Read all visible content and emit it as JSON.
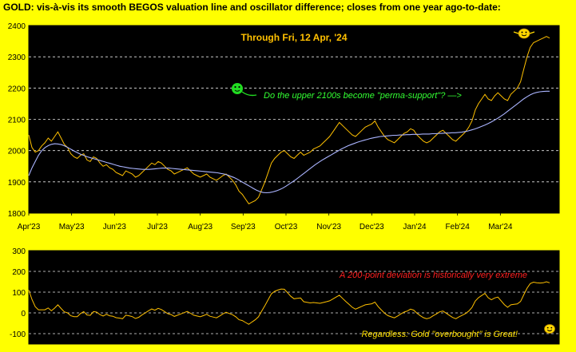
{
  "chart_data": [
    {
      "type": "line",
      "title": "GOLD:  vis-à-vis its smooth BEGOS valuation line and oscillator difference; closes from one year ago-to-date:",
      "subtitle": "Through Fri, 12 Apr, '24",
      "x_labels": [
        "Apr'23",
        "May'23",
        "Jun'23",
        "Jul'23",
        "Aug'23",
        "Sep'23",
        "Oct'23",
        "Nov'23",
        "Dec'23",
        "Jan'24",
        "Feb'24",
        "Mar'24"
      ],
      "ylim": [
        1800,
        2400
      ],
      "yticks": [
        1800,
        1900,
        2000,
        2100,
        2200,
        2300,
        2400
      ],
      "grid": true,
      "annotation": "Do the upper 2100s become \"perma-support\"?  —>",
      "series": [
        {
          "role": "price",
          "color": "#ffc000",
          "values": [
            2050,
            2010,
            1995,
            2000,
            2015,
            2025,
            2040,
            2030,
            2045,
            2060,
            2040,
            2020,
            2010,
            1990,
            1980,
            1975,
            1985,
            1990,
            1970,
            1965,
            1980,
            1975,
            1960,
            1950,
            1955,
            1945,
            1940,
            1930,
            1925,
            1920,
            1935,
            1930,
            1925,
            1915,
            1920,
            1930,
            1940,
            1950,
            1960,
            1955,
            1965,
            1960,
            1950,
            1940,
            1935,
            1925,
            1930,
            1935,
            1940,
            1945,
            1935,
            1925,
            1920,
            1915,
            1920,
            1925,
            1915,
            1910,
            1905,
            1912,
            1920,
            1925,
            1915,
            1905,
            1890,
            1870,
            1860,
            1845,
            1830,
            1835,
            1840,
            1850,
            1875,
            1900,
            1930,
            1960,
            1975,
            1985,
            1995,
            2000,
            1990,
            1980,
            1975,
            1985,
            1995,
            1985,
            1990,
            1995,
            2005,
            2010,
            2015,
            2025,
            2035,
            2045,
            2060,
            2075,
            2090,
            2080,
            2070,
            2060,
            2050,
            2045,
            2055,
            2065,
            2075,
            2080,
            2085,
            2095,
            2075,
            2060,
            2045,
            2035,
            2030,
            2025,
            2035,
            2045,
            2055,
            2060,
            2070,
            2065,
            2050,
            2040,
            2030,
            2025,
            2030,
            2040,
            2050,
            2060,
            2065,
            2055,
            2045,
            2035,
            2030,
            2040,
            2050,
            2060,
            2075,
            2095,
            2130,
            2150,
            2165,
            2180,
            2165,
            2160,
            2175,
            2185,
            2175,
            2165,
            2160,
            2180,
            2190,
            2200,
            2220,
            2260,
            2300,
            2330,
            2345,
            2350,
            2355,
            2360,
            2365,
            2360
          ],
          "x_start_label_index": 0
        },
        {
          "role": "valuation",
          "color": "#aab4ff",
          "values": [
            1920,
            1945,
            1965,
            1985,
            2000,
            2010,
            2016,
            2020,
            2022,
            2021,
            2019,
            2015,
            2010,
            2004,
            1998,
            1993,
            1988,
            1984,
            1980,
            1977,
            1974,
            1971,
            1968,
            1965,
            1962,
            1959,
            1956,
            1953,
            1950,
            1948,
            1946,
            1944,
            1943,
            1942,
            1941,
            1940,
            1940,
            1940,
            1941,
            1942,
            1943,
            1944,
            1944,
            1944,
            1943,
            1942,
            1941,
            1940,
            1939,
            1938,
            1937,
            1936,
            1935,
            1934,
            1933,
            1932,
            1931,
            1930,
            1929,
            1927,
            1925,
            1922,
            1918,
            1914,
            1909,
            1903,
            1897,
            1891,
            1885,
            1879,
            1873,
            1869,
            1866,
            1865,
            1866,
            1868,
            1871,
            1875,
            1880,
            1886,
            1893,
            1900,
            1907,
            1915,
            1923,
            1931,
            1939,
            1947,
            1955,
            1962,
            1969,
            1975,
            1981,
            1987,
            1993,
            1999,
            2005,
            2010,
            2015,
            2019,
            2023,
            2027,
            2030,
            2033,
            2036,
            2039,
            2041,
            2043,
            2045,
            2046,
            2047,
            2048,
            2049,
            2049,
            2050,
            2050,
            2051,
            2051,
            2052,
            2052,
            2052,
            2053,
            2053,
            2053,
            2054,
            2054,
            2055,
            2055,
            2056,
            2056,
            2057,
            2057,
            2058,
            2059,
            2061,
            2063,
            2066,
            2069,
            2073,
            2077,
            2081,
            2086,
            2091,
            2097,
            2103,
            2110,
            2117,
            2125,
            2133,
            2141,
            2149,
            2157,
            2165,
            2172,
            2178,
            2183,
            2186,
            2188,
            2189,
            2190,
            2190
          ]
        }
      ]
    },
    {
      "type": "line",
      "title": "",
      "ylim": [
        -150,
        300
      ],
      "yticks": [
        -100,
        0,
        100,
        200,
        300
      ],
      "grid": true,
      "annotations": [
        "A 200-point deviation is historically very extreme",
        "Regardless:  Gold \"overbought\" is Great!"
      ],
      "series": [
        {
          "role": "oscillator",
          "color": "#ffc000",
          "values": [
            110,
            65,
            30,
            15,
            15,
            15,
            24,
            10,
            23,
            39,
            21,
            5,
            0,
            -14,
            -18,
            -18,
            -3,
            6,
            -10,
            -12,
            6,
            4,
            -8,
            -15,
            -7,
            -14,
            -16,
            -23,
            -25,
            -28,
            -11,
            -14,
            -18,
            -27,
            -21,
            -10,
            0,
            10,
            19,
            13,
            22,
            16,
            6,
            -4,
            -8,
            -17,
            -11,
            -5,
            1,
            7,
            -2,
            -11,
            -15,
            -19,
            -13,
            -7,
            -16,
            -20,
            -24,
            -15,
            -5,
            3,
            -3,
            -9,
            -19,
            -33,
            -37,
            -46,
            -55,
            -44,
            -33,
            -19,
            9,
            35,
            64,
            92,
            104,
            110,
            115,
            114,
            97,
            80,
            68,
            70,
            72,
            54,
            51,
            48,
            50,
            48,
            46,
            50,
            54,
            58,
            67,
            76,
            85,
            70,
            55,
            41,
            27,
            18,
            25,
            32,
            39,
            41,
            44,
            52,
            30,
            14,
            -2,
            -13,
            -19,
            -24,
            -15,
            -5,
            4,
            9,
            18,
            13,
            -2,
            -13,
            -23,
            -28,
            -24,
            -14,
            -5,
            5,
            9,
            -1,
            -12,
            -22,
            -28,
            -19,
            -11,
            -3,
            9,
            26,
            57,
            73,
            84,
            94,
            73,
            63,
            72,
            76,
            58,
            40,
            27,
            39,
            41,
            43,
            55,
            87,
            119,
            141,
            148,
            145,
            144,
            145,
            150,
            145
          ]
        }
      ]
    }
  ]
}
